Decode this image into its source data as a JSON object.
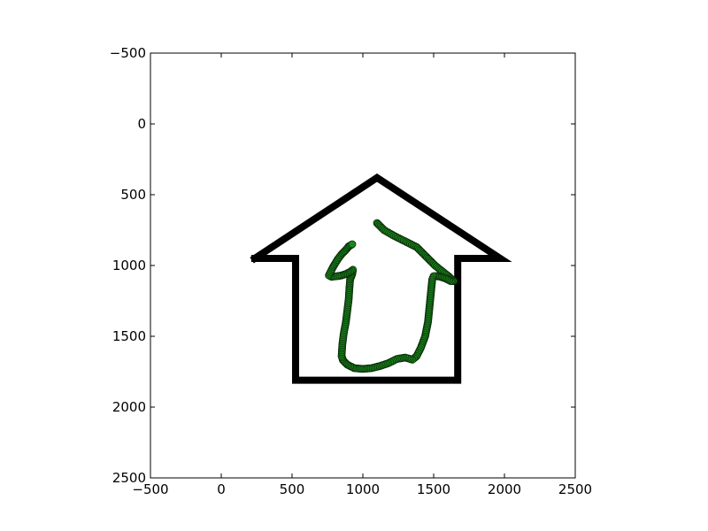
{
  "chart_data": {
    "type": "line",
    "title": "",
    "xlabel": "",
    "ylabel": "",
    "xlim": [
      -500,
      2500
    ],
    "ylim": [
      2500,
      -500
    ],
    "y_inverted": true,
    "grid": false,
    "legend": "none",
    "x_ticks": [
      -500,
      0,
      500,
      1000,
      1500,
      2000,
      2500
    ],
    "y_ticks": [
      -500,
      0,
      500,
      1000,
      1500,
      2000,
      2500
    ],
    "x_tick_labels": [
      "−500",
      "0",
      "500",
      "1000",
      "1500",
      "2000",
      "2500"
    ],
    "y_tick_labels": [
      "−500",
      "0",
      "500",
      "1000",
      "1500",
      "2000",
      "2500"
    ],
    "series": [
      {
        "kind": "outline",
        "color": "#000000",
        "x": [
          237,
          1100,
          1970,
          1670,
          1670,
          525,
          525,
          237
        ],
        "y": [
          950,
          380,
          950,
          950,
          1810,
          1810,
          950,
          950
        ]
      },
      {
        "kind": "trajectory",
        "color": "#1a8a1a",
        "edge_color": "#0a2a0a",
        "x": [
          1100,
          1150,
          1220,
          1300,
          1380,
          1430,
          1470,
          1510,
          1560,
          1610,
          1640,
          1620,
          1580,
          1550,
          1520,
          1500,
          1490,
          1480,
          1470,
          1460,
          1440,
          1410,
          1380,
          1350,
          1300,
          1240,
          1180,
          1120,
          1060,
          1000,
          940,
          890,
          860,
          850,
          855,
          865,
          880,
          890,
          900,
          905,
          910,
          925,
          930,
          910,
          880,
          850,
          820,
          780,
          760,
          790,
          820,
          850,
          880,
          900,
          925
        ],
        "y": [
          700,
          750,
          790,
          830,
          870,
          920,
          960,
          1000,
          1040,
          1080,
          1110,
          1110,
          1090,
          1080,
          1075,
          1075,
          1100,
          1200,
          1300,
          1400,
          1500,
          1580,
          1640,
          1665,
          1650,
          1660,
          1690,
          1710,
          1725,
          1730,
          1725,
          1700,
          1670,
          1640,
          1560,
          1480,
          1400,
          1320,
          1240,
          1160,
          1100,
          1060,
          1030,
          1045,
          1060,
          1070,
          1075,
          1080,
          1070,
          1010,
          960,
          920,
          890,
          865,
          850
        ]
      }
    ]
  }
}
